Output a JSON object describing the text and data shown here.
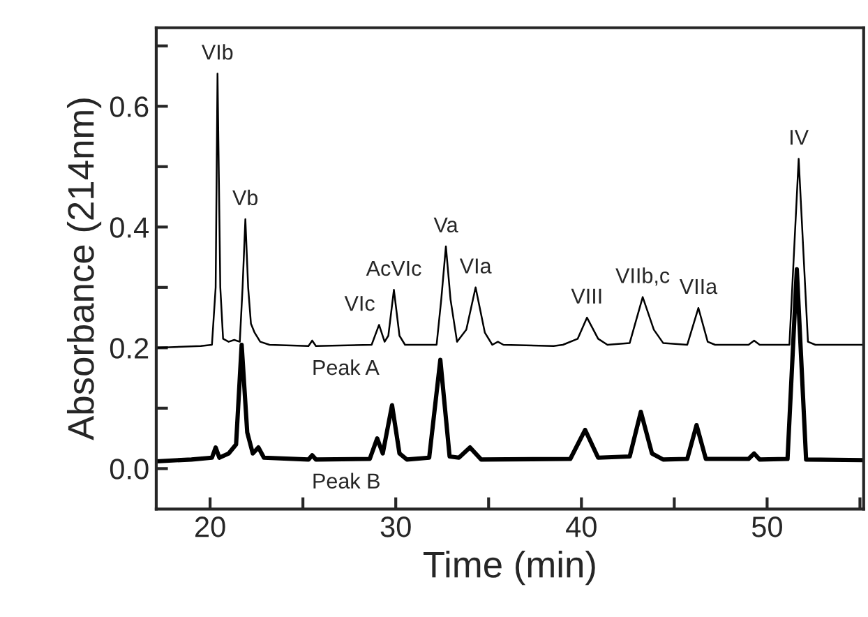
{
  "chart_data": {
    "type": "line",
    "xlabel": "Time (min)",
    "ylabel": "Absorbance (214nm)",
    "xlim": [
      17.1,
      55.2
    ],
    "ylim": [
      -0.067,
      0.73
    ],
    "xticks": [
      20,
      {
        "value": 25,
        "label": null
      },
      30,
      {
        "value": 35,
        "label": null
      },
      40,
      {
        "value": 45,
        "label": null
      },
      50,
      {
        "value": 55,
        "label": null
      }
    ],
    "yticks": [
      {
        "value": 0.0,
        "label": "0.0"
      },
      {
        "value": 0.1,
        "label": null
      },
      {
        "value": 0.2,
        "label": "0.2"
      },
      {
        "value": 0.3,
        "label": null
      },
      {
        "value": 0.4,
        "label": "0.4"
      },
      {
        "value": 0.5,
        "label": null
      },
      {
        "value": 0.6,
        "label": "0.6"
      },
      {
        "value": 0.7,
        "label": null
      }
    ],
    "grid": false,
    "legend": false,
    "marker": "none",
    "line_style": "solid",
    "series": [
      {
        "name": "Peak A",
        "color": "#000000",
        "x": [
          17.1,
          19.5,
          20.1,
          20.3,
          20.4,
          20.55,
          20.7,
          21.0,
          21.3,
          21.6,
          21.75,
          21.9,
          22.05,
          22.2,
          22.4,
          22.7,
          23.2,
          25.3,
          25.5,
          25.7,
          28.7,
          29.1,
          29.4,
          29.6,
          29.9,
          30.2,
          30.5,
          32.2,
          32.45,
          32.7,
          32.95,
          33.3,
          33.8,
          34.3,
          34.8,
          35.2,
          35.5,
          35.8,
          38.5,
          39.0,
          39.8,
          40.3,
          40.9,
          41.4,
          42.6,
          43.3,
          43.9,
          44.4,
          45.7,
          46.3,
          46.8,
          47.2,
          49.0,
          49.3,
          49.6,
          51.2,
          51.7,
          52.2,
          52.6,
          55.2
        ],
        "values": [
          0.2,
          0.203,
          0.205,
          0.3,
          0.654,
          0.3,
          0.215,
          0.21,
          0.213,
          0.21,
          0.3,
          0.413,
          0.3,
          0.24,
          0.225,
          0.21,
          0.205,
          0.203,
          0.212,
          0.203,
          0.205,
          0.238,
          0.21,
          0.22,
          0.296,
          0.22,
          0.205,
          0.205,
          0.28,
          0.368,
          0.28,
          0.21,
          0.23,
          0.3,
          0.225,
          0.205,
          0.21,
          0.205,
          0.203,
          0.205,
          0.215,
          0.25,
          0.215,
          0.205,
          0.208,
          0.284,
          0.23,
          0.208,
          0.205,
          0.266,
          0.21,
          0.205,
          0.205,
          0.212,
          0.205,
          0.205,
          0.513,
          0.21,
          0.205,
          0.205
        ]
      },
      {
        "name": "Peak B",
        "color": "#000000",
        "x": [
          17.1,
          19.0,
          20.1,
          20.3,
          20.5,
          21.0,
          21.4,
          21.7,
          22.0,
          22.3,
          22.6,
          22.9,
          25.3,
          25.5,
          25.7,
          28.6,
          29.0,
          29.3,
          29.8,
          30.2,
          30.6,
          31.8,
          32.4,
          32.9,
          33.4,
          34.0,
          34.6,
          39.4,
          40.2,
          40.9,
          42.6,
          43.2,
          43.8,
          44.4,
          45.7,
          46.2,
          46.7,
          49.0,
          49.3,
          49.6,
          51.1,
          51.6,
          52.1,
          55.2
        ],
        "values": [
          0.012,
          0.015,
          0.018,
          0.035,
          0.018,
          0.025,
          0.04,
          0.205,
          0.06,
          0.025,
          0.035,
          0.018,
          0.015,
          0.022,
          0.015,
          0.016,
          0.05,
          0.025,
          0.105,
          0.025,
          0.015,
          0.018,
          0.18,
          0.02,
          0.018,
          0.035,
          0.015,
          0.016,
          0.064,
          0.018,
          0.02,
          0.094,
          0.025,
          0.015,
          0.016,
          0.072,
          0.016,
          0.016,
          0.025,
          0.015,
          0.016,
          0.33,
          0.015,
          0.014
        ]
      }
    ],
    "annotations": [
      {
        "text": "VIb",
        "x": 20.4,
        "y": 0.654
      },
      {
        "text": "Vb",
        "x": 21.9,
        "y": 0.413
      },
      {
        "text": "VIc",
        "x": 29.1,
        "y": 0.238
      },
      {
        "text": "AcVIc",
        "x": 29.9,
        "y": 0.296
      },
      {
        "text": "Va",
        "x": 32.7,
        "y": 0.368
      },
      {
        "text": "VIa",
        "x": 34.3,
        "y": 0.3
      },
      {
        "text": "VIII",
        "x": 40.3,
        "y": 0.25
      },
      {
        "text": "VIIb,c",
        "x": 43.3,
        "y": 0.284
      },
      {
        "text": "VIIa",
        "x": 46.3,
        "y": 0.266
      },
      {
        "text": "IV",
        "x": 51.7,
        "y": 0.513
      }
    ]
  }
}
